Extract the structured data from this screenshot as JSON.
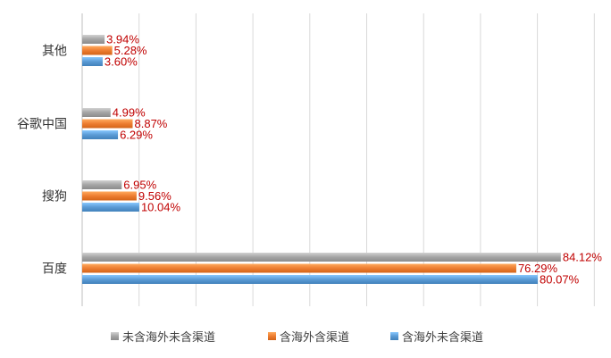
{
  "chart_data": {
    "type": "bar",
    "orientation": "horizontal",
    "categories": [
      "其他",
      "谷歌中国",
      "搜狗",
      "百度"
    ],
    "series": [
      {
        "name": "未含海外未含渠道",
        "values": [
          3.94,
          4.99,
          6.95,
          84.12
        ],
        "labels": [
          "3.94%",
          "4.99%",
          "6.95%",
          "84.12%"
        ],
        "color": "#a5a5a5"
      },
      {
        "name": "含海外含渠道",
        "values": [
          5.28,
          8.87,
          9.56,
          76.29
        ],
        "labels": [
          "5.28%",
          "8.87%",
          "9.56%",
          "76.29%"
        ],
        "color": "#ed7d31"
      },
      {
        "name": "含海外未含渠道",
        "values": [
          3.6,
          6.29,
          10.04,
          80.07
        ],
        "labels": [
          "3.60%",
          "6.29%",
          "10.04%",
          "80.07%"
        ],
        "color": "#5b9bd5"
      }
    ],
    "xlim": [
      0,
      90
    ],
    "grid": true,
    "legend_position": "bottom",
    "data_label_color": "#c00000"
  }
}
